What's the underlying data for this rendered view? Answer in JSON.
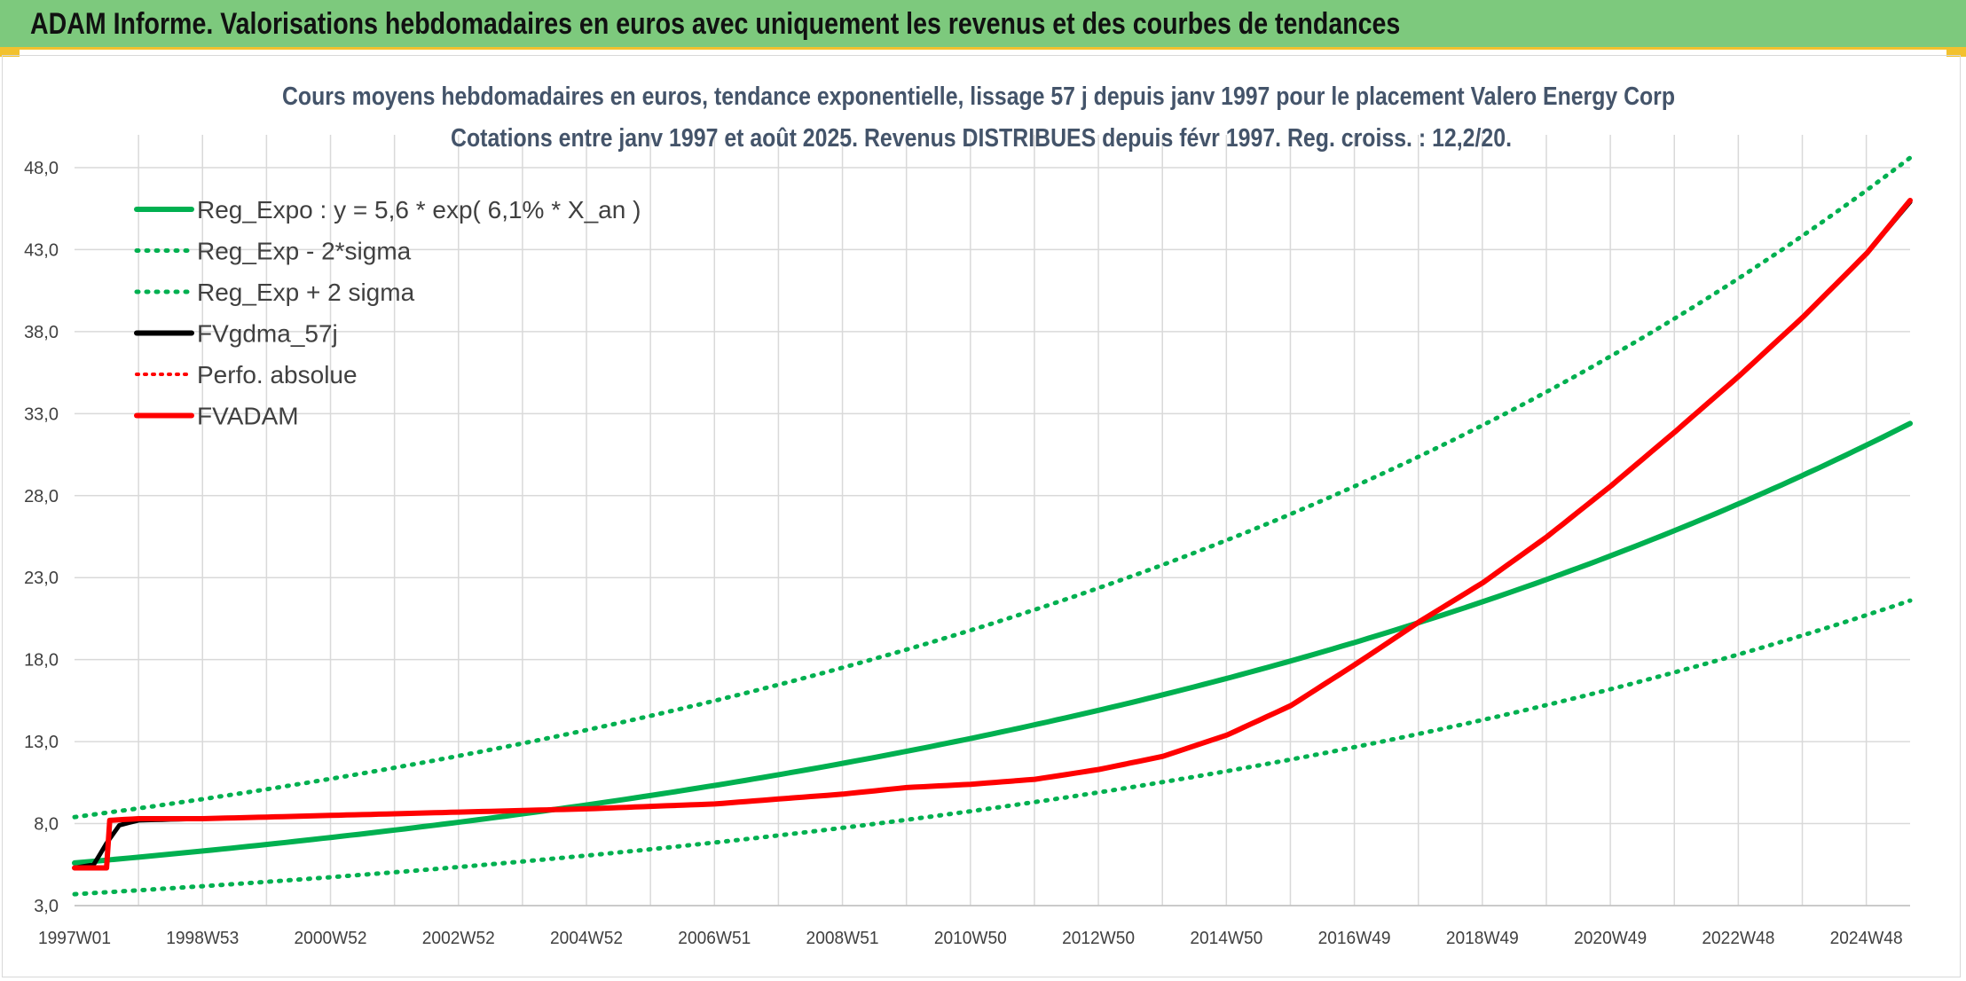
{
  "header": {
    "title": "ADAM Informe. Valorisations hebdomadaires en euros avec uniquement les revenus et des courbes de tendances"
  },
  "colors": {
    "header_bg": "#7dc97d",
    "green": "#00b050",
    "red": "#ff0000",
    "black": "#000000",
    "grid": "#d9d9d9"
  },
  "chart_data": {
    "type": "line",
    "title": "Cours moyens hebdomadaires en euros, tendance exponentielle, lissage 57 j depuis janv 1997 pour le placement Valero Energy Corp",
    "subtitle": "Cotations entre janv 1997 et août 2025. Revenus DISTRIBUES depuis févr 1997. Reg. croiss. : 12,2/20.",
    "x_tick_labels": [
      "1997W01",
      "1998W53",
      "2000W52",
      "2002W52",
      "2004W52",
      "2006W51",
      "2008W51",
      "2010W50",
      "2012W50",
      "2014W50",
      "2016W49",
      "2018W49",
      "2020W49",
      "2022W48",
      "2024W48"
    ],
    "x_range_years": [
      1997.0,
      2025.67
    ],
    "y_tick_labels": [
      "3,0",
      "8,0",
      "13,0",
      "18,0",
      "23,0",
      "28,0",
      "33,0",
      "38,0",
      "43,0",
      "48,0"
    ],
    "ylim": [
      3.0,
      50.0
    ],
    "grid": true,
    "legend_position": "top-left",
    "legend": [
      {
        "label": "Reg_Expo : y = 5,6 * exp( 6,1% *  X_an )",
        "style": "solid",
        "color": "#00b050"
      },
      {
        "label": "Reg_Exp - 2*sigma",
        "style": "dotted",
        "color": "#00b050"
      },
      {
        "label": "Reg_Exp + 2 sigma",
        "style": "dotted",
        "color": "#00b050"
      },
      {
        "label": "FVgdma_57j",
        "style": "solid",
        "color": "#000000"
      },
      {
        "label": "Perfo. absolue",
        "style": "dotted",
        "color": "#ff0000"
      },
      {
        "label": "FVADAM",
        "style": "solid",
        "color": "#ff0000"
      }
    ],
    "series": [
      {
        "name": "Reg_Expo : y = 5,6 * exp( 6,1% *  X_an )",
        "x": [
          1997.0,
          1999.0,
          2001.0,
          2003.0,
          2005.0,
          2007.0,
          2009.0,
          2011.0,
          2013.0,
          2015.0,
          2017.0,
          2019.0,
          2021.0,
          2023.0,
          2025.67
        ],
        "values": [
          5.6,
          6.3,
          7.1,
          8.0,
          9.1,
          10.3,
          11.6,
          13.1,
          14.8,
          16.7,
          18.9,
          21.4,
          24.2,
          27.3,
          32.4
        ]
      },
      {
        "name": "Reg_Exp - 2*sigma",
        "x": [
          1997.0,
          1999.0,
          2001.0,
          2003.0,
          2005.0,
          2007.0,
          2009.0,
          2011.0,
          2013.0,
          2015.0,
          2017.0,
          2019.0,
          2021.0,
          2023.0,
          2025.67
        ],
        "values": [
          3.7,
          4.2,
          4.8,
          5.4,
          6.1,
          6.9,
          7.8,
          8.8,
          9.9,
          11.2,
          12.7,
          14.3,
          16.2,
          18.3,
          21.6
        ]
      },
      {
        "name": "Reg_Exp + 2 sigma",
        "x": [
          1997.0,
          1999.0,
          2001.0,
          2003.0,
          2005.0,
          2007.0,
          2009.0,
          2011.0,
          2013.0,
          2015.0,
          2017.0,
          2019.0,
          2021.0,
          2023.0,
          2025.67
        ],
        "values": [
          8.4,
          9.5,
          10.7,
          12.1,
          13.7,
          15.5,
          17.5,
          19.7,
          22.3,
          25.2,
          28.4,
          32.1,
          36.3,
          41.0,
          48.6
        ]
      },
      {
        "name": "FVgdma_57j",
        "x": [
          1997.0,
          1997.3,
          1997.5,
          1997.7,
          1998.0,
          1999.0,
          2001.0,
          2003.0,
          2005.0,
          2007.0,
          2009.0,
          2010.0,
          2011.0,
          2012.0,
          2013.0,
          2014.0,
          2015.0,
          2016.0,
          2017.0,
          2018.0,
          2019.0,
          2020.0,
          2021.0,
          2022.0,
          2023.0,
          2024.0,
          2025.0,
          2025.67
        ],
        "values": [
          5.3,
          5.5,
          6.8,
          7.9,
          8.2,
          8.3,
          8.5,
          8.7,
          8.9,
          9.2,
          9.8,
          10.2,
          10.4,
          10.7,
          11.3,
          12.1,
          13.4,
          15.2,
          17.7,
          20.3,
          22.7,
          25.5,
          28.6,
          31.9,
          35.3,
          38.9,
          42.8,
          45.9
        ]
      },
      {
        "name": "FVADAM",
        "x": [
          1997.0,
          1997.5,
          1997.55,
          1998.0,
          1999.0,
          2001.0,
          2003.0,
          2005.0,
          2007.0,
          2009.0,
          2010.0,
          2011.0,
          2012.0,
          2013.0,
          2014.0,
          2015.0,
          2016.0,
          2017.0,
          2018.0,
          2019.0,
          2020.0,
          2021.0,
          2022.0,
          2023.0,
          2024.0,
          2025.0,
          2025.67
        ],
        "values": [
          5.3,
          5.3,
          8.2,
          8.3,
          8.3,
          8.5,
          8.7,
          8.9,
          9.2,
          9.8,
          10.2,
          10.4,
          10.7,
          11.3,
          12.1,
          13.4,
          15.2,
          17.7,
          20.3,
          22.7,
          25.5,
          28.6,
          31.9,
          35.3,
          38.9,
          42.8,
          46.0
        ]
      }
    ]
  }
}
